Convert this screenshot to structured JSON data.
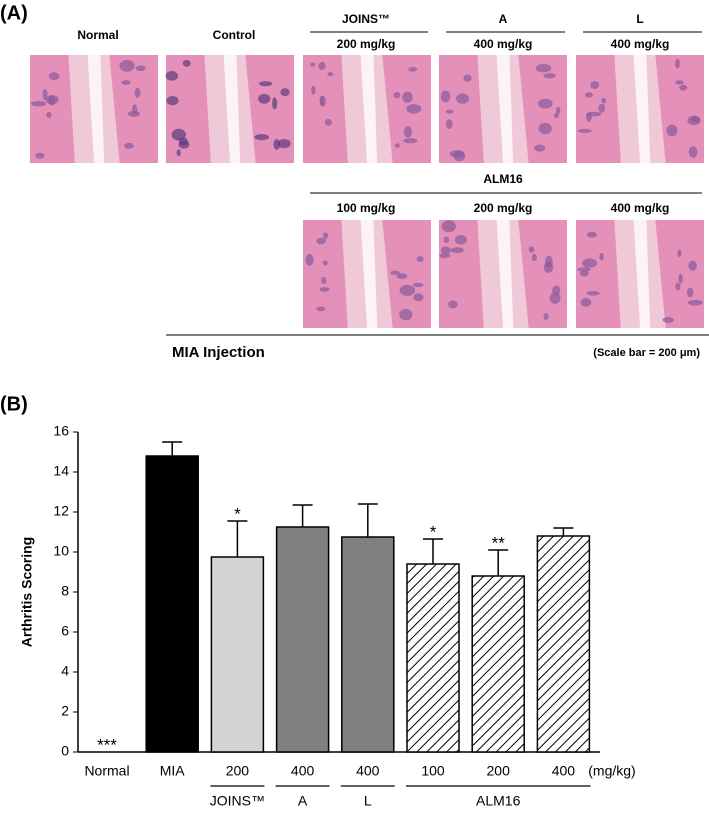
{
  "panel_a": {
    "label": "(A)",
    "top_labels": [
      "Normal",
      "Control"
    ],
    "groups": [
      {
        "label": "JOINS™",
        "dose": "200 mg/kg"
      },
      {
        "label": "A",
        "dose": "400 mg/kg"
      },
      {
        "label": "L",
        "dose": "400 mg/kg"
      }
    ],
    "alm16": {
      "label": "ALM16",
      "doses": [
        "100 mg/kg",
        "200 mg/kg",
        "400 mg/kg"
      ]
    },
    "injection_label": "MIA Injection",
    "scale_note": "(Scale bar = 200 μm)"
  },
  "chart_data": {
    "type": "bar",
    "panel_label": "(B)",
    "y_label": "Arthritis Scoring",
    "categories": [
      "Normal",
      "MIA",
      "200",
      "400",
      "400",
      "100",
      "200",
      "400"
    ],
    "values": [
      0,
      14.8,
      9.75,
      11.25,
      10.75,
      9.4,
      8.8,
      10.8
    ],
    "errors": [
      0,
      0.7,
      1.8,
      1.1,
      1.65,
      1.25,
      1.3,
      0.4
    ],
    "colors": [
      "#ffffff",
      "#000000",
      "#d4d4d4",
      "#808080",
      "#808080",
      "#ffffff",
      "#ffffff",
      "#ffffff"
    ],
    "hatch": [
      false,
      false,
      false,
      false,
      false,
      true,
      true,
      true
    ],
    "significance": [
      "***",
      null,
      "*",
      null,
      null,
      "*",
      "**",
      null
    ],
    "unit_label": "(mg/kg)",
    "groups": [
      {
        "label": "JOINS™",
        "span": [
          2,
          2
        ]
      },
      {
        "label": "A",
        "span": [
          3,
          3
        ]
      },
      {
        "label": "L",
        "span": [
          4,
          4
        ]
      },
      {
        "label": "ALM16",
        "span": [
          5,
          7
        ]
      }
    ],
    "ylim": [
      0,
      16
    ],
    "yticks": [
      0,
      2,
      4,
      6,
      8,
      10,
      12,
      14,
      16
    ]
  }
}
